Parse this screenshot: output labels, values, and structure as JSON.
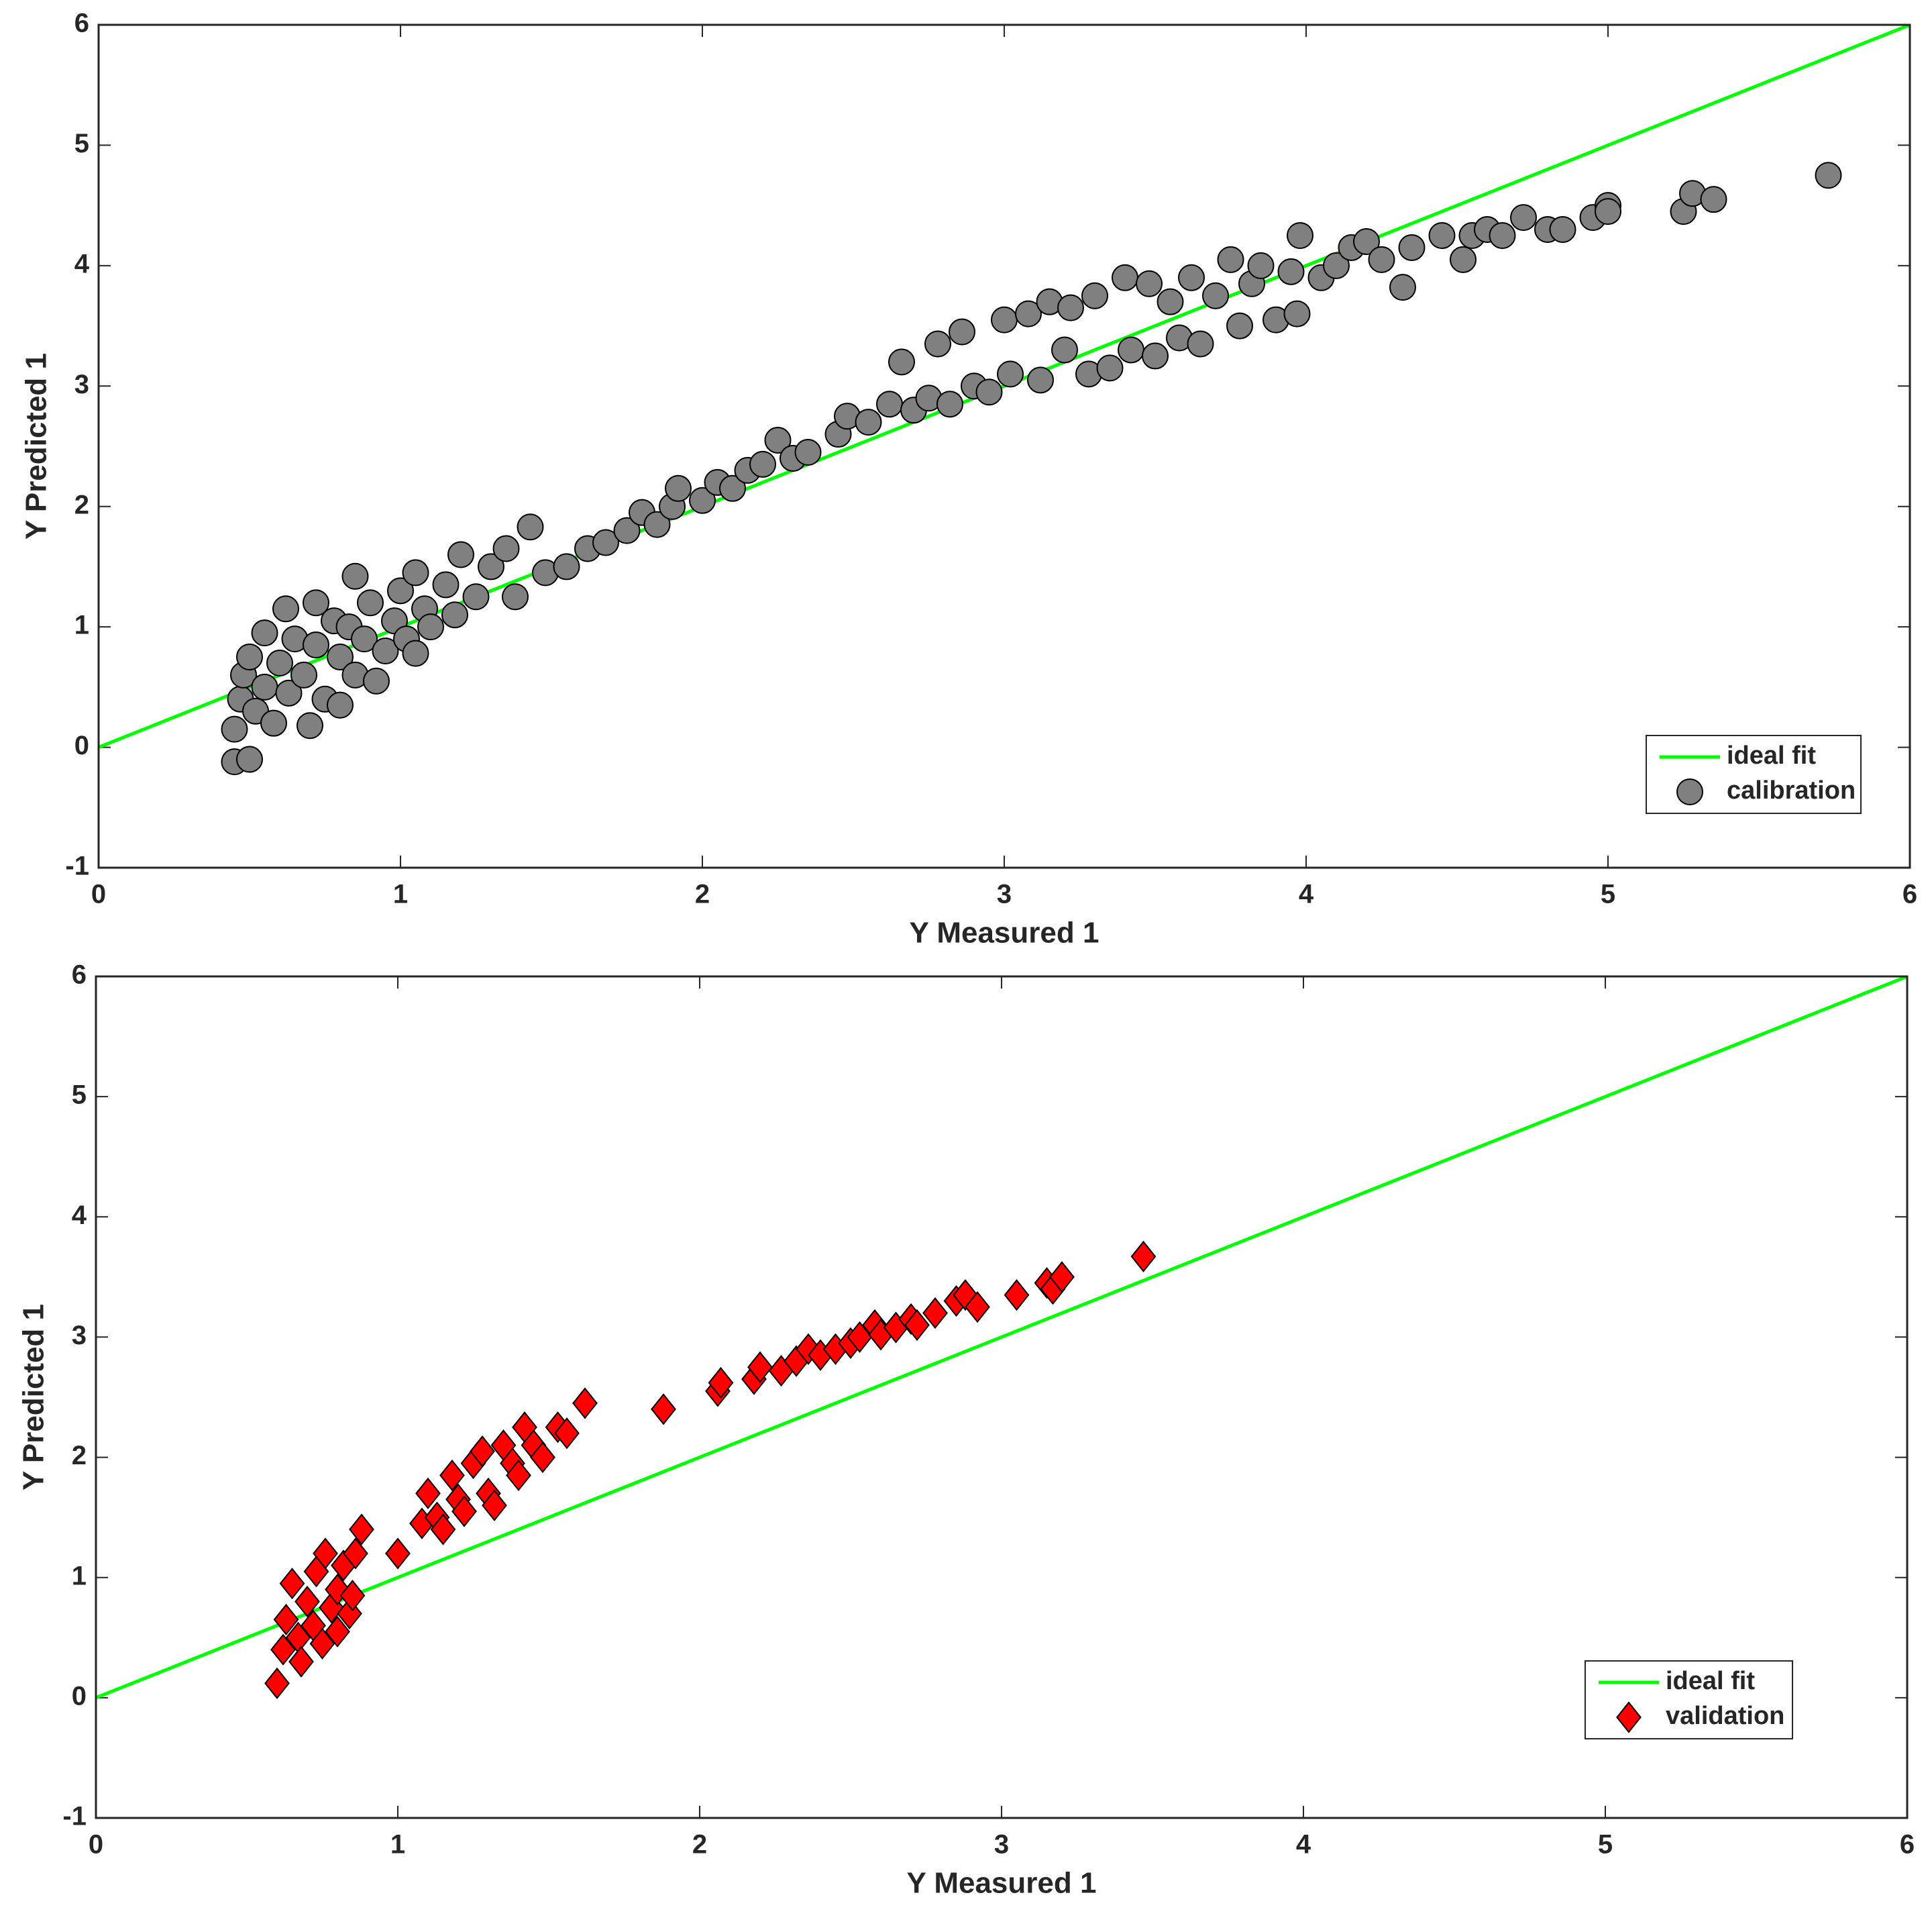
{
  "chart_data": [
    {
      "type": "scatter",
      "xlabel": "Y Measured 1",
      "ylabel": "Y Predicted 1",
      "xlim": [
        0,
        6
      ],
      "ylim": [
        -1,
        6
      ],
      "xticks": [
        0,
        1,
        2,
        3,
        4,
        5,
        6
      ],
      "yticks": [
        -1,
        0,
        1,
        2,
        3,
        4,
        5,
        6
      ],
      "legend": "lower right",
      "series": [
        {
          "name": "ideal fit",
          "type": "line",
          "color": "#00ff00",
          "x": [
            0,
            6
          ],
          "values": [
            0,
            6
          ]
        },
        {
          "name": "calibration",
          "type": "scatter",
          "marker": "circle",
          "color": "#808080",
          "x": [
            0.45,
            0.5,
            0.45,
            0.47,
            0.48,
            0.5,
            0.52,
            0.55,
            0.55,
            0.58,
            0.6,
            0.62,
            0.63,
            0.65,
            0.68,
            0.7,
            0.72,
            0.72,
            0.75,
            0.78,
            0.8,
            0.8,
            0.83,
            0.85,
            0.85,
            0.88,
            0.9,
            0.92,
            0.95,
            0.98,
            1.0,
            1.02,
            1.05,
            1.05,
            1.08,
            1.1,
            1.15,
            1.18,
            1.2,
            1.25,
            1.3,
            1.35,
            1.38,
            1.43,
            1.48,
            1.55,
            1.62,
            1.68,
            1.75,
            1.8,
            1.85,
            1.9,
            1.92,
            2.0,
            2.05,
            2.1,
            2.15,
            2.2,
            2.25,
            2.3,
            2.35,
            2.45,
            2.48,
            2.55,
            2.62,
            2.66,
            2.7,
            2.75,
            2.78,
            2.82,
            2.86,
            2.9,
            2.95,
            3.0,
            3.02,
            3.08,
            3.12,
            3.15,
            3.2,
            3.22,
            3.28,
            3.3,
            3.35,
            3.4,
            3.42,
            3.48,
            3.5,
            3.55,
            3.58,
            3.62,
            3.65,
            3.7,
            3.75,
            3.78,
            3.82,
            3.85,
            3.9,
            3.95,
            3.97,
            3.98,
            4.05,
            4.1,
            4.15,
            4.2,
            4.25,
            4.32,
            4.35,
            4.45,
            4.52,
            4.55,
            4.6,
            4.65,
            4.72,
            4.8,
            4.85,
            4.95,
            5.0,
            5.0,
            5.25,
            5.28,
            5.35,
            5.73
          ],
          "values": [
            -0.12,
            -0.1,
            0.15,
            0.4,
            0.6,
            0.75,
            0.3,
            0.95,
            0.5,
            0.2,
            0.7,
            1.15,
            0.45,
            0.9,
            0.6,
            0.18,
            1.2,
            0.85,
            0.4,
            1.05,
            0.35,
            0.75,
            1.0,
            1.42,
            0.6,
            0.9,
            1.2,
            0.55,
            0.8,
            1.05,
            1.3,
            0.9,
            0.78,
            1.45,
            1.15,
            1.0,
            1.35,
            1.1,
            1.6,
            1.25,
            1.5,
            1.65,
            1.25,
            1.83,
            1.45,
            1.5,
            1.65,
            1.7,
            1.8,
            1.95,
            1.85,
            2.0,
            2.15,
            2.05,
            2.2,
            2.15,
            2.3,
            2.35,
            2.55,
            2.4,
            2.45,
            2.6,
            2.75,
            2.7,
            2.85,
            3.2,
            2.8,
            2.9,
            3.35,
            2.85,
            3.45,
            3.0,
            2.95,
            3.55,
            3.1,
            3.6,
            3.05,
            3.7,
            3.3,
            3.65,
            3.1,
            3.75,
            3.15,
            3.9,
            3.3,
            3.85,
            3.25,
            3.7,
            3.4,
            3.9,
            3.35,
            3.75,
            4.05,
            3.5,
            3.85,
            4.0,
            3.55,
            3.95,
            3.6,
            4.25,
            3.9,
            4.0,
            4.15,
            4.2,
            4.05,
            3.82,
            4.15,
            4.25,
            4.05,
            4.25,
            4.3,
            4.25,
            4.4,
            4.3,
            4.3,
            4.4,
            4.5,
            4.45,
            4.45,
            4.6,
            4.55,
            4.75
          ]
        }
      ]
    },
    {
      "type": "scatter",
      "xlabel": "Y Measured 1",
      "ylabel": "Y Predicted 1",
      "xlim": [
        0,
        6
      ],
      "ylim": [
        -1,
        6
      ],
      "xticks": [
        0,
        1,
        2,
        3,
        4,
        5,
        6
      ],
      "yticks": [
        -1,
        0,
        1,
        2,
        3,
        4,
        5,
        6
      ],
      "legend": "lower right",
      "series": [
        {
          "name": "ideal fit",
          "type": "line",
          "color": "#00ff00",
          "x": [
            0,
            6
          ],
          "values": [
            0,
            6
          ]
        },
        {
          "name": "validation",
          "type": "scatter",
          "marker": "diamond",
          "color": "#ff0000",
          "x": [
            0.6,
            0.62,
            0.63,
            0.65,
            0.67,
            0.68,
            0.7,
            0.72,
            0.73,
            0.75,
            0.76,
            0.78,
            0.8,
            0.8,
            0.82,
            0.84,
            0.85,
            0.86,
            0.88,
            1.0,
            1.08,
            1.1,
            1.13,
            1.15,
            1.18,
            1.2,
            1.22,
            1.25,
            1.28,
            1.3,
            1.32,
            1.35,
            1.38,
            1.4,
            1.42,
            1.45,
            1.48,
            1.53,
            1.56,
            1.62,
            1.88,
            2.06,
            2.07,
            2.18,
            2.2,
            2.27,
            2.32,
            2.36,
            2.4,
            2.45,
            2.5,
            2.53,
            2.58,
            2.6,
            2.65,
            2.7,
            2.72,
            2.78,
            2.85,
            2.88,
            2.92,
            3.05,
            3.15,
            3.17,
            3.2,
            3.47
          ],
          "values": [
            0.12,
            0.4,
            0.65,
            0.95,
            0.5,
            0.3,
            0.8,
            0.6,
            1.05,
            0.45,
            1.2,
            0.75,
            0.9,
            0.55,
            1.1,
            0.7,
            0.85,
            1.2,
            1.4,
            1.2,
            1.45,
            1.7,
            1.5,
            1.4,
            1.85,
            1.65,
            1.55,
            1.95,
            2.05,
            1.7,
            1.6,
            2.1,
            1.95,
            1.85,
            2.25,
            2.1,
            2.0,
            2.25,
            2.2,
            2.45,
            2.4,
            2.55,
            2.62,
            2.65,
            2.75,
            2.72,
            2.8,
            2.9,
            2.85,
            2.9,
            2.95,
            3.0,
            3.1,
            3.02,
            3.08,
            3.15,
            3.1,
            3.2,
            3.3,
            3.35,
            3.25,
            3.35,
            3.45,
            3.4,
            3.5,
            3.67
          ]
        }
      ]
    }
  ]
}
